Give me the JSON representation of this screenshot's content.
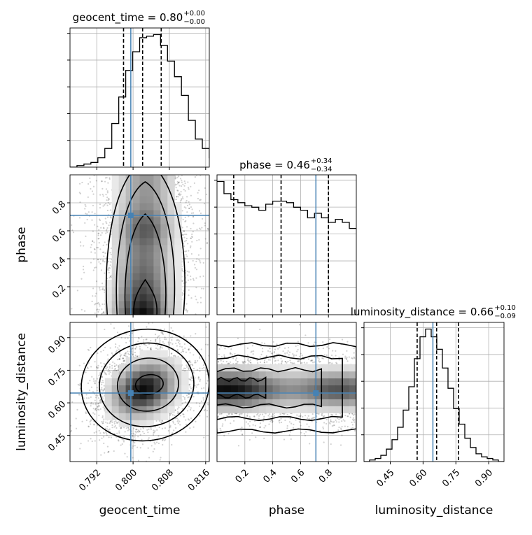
{
  "chart_data": {
    "type": "corner",
    "truth_color": "#4682b4",
    "parameters": [
      "geocent_time",
      "phase",
      "luminosity_distance"
    ],
    "truths": {
      "geocent_time": 0.7995,
      "phase": 0.71,
      "luminosity_distance": 0.645
    },
    "ranges": {
      "geocent_time": [
        0.7861,
        0.8168
      ],
      "phase": [
        0.0,
        1.0
      ],
      "luminosity_distance": [
        0.33,
        0.97
      ]
    },
    "ticks": {
      "geocent_time": [
        "0.792",
        "0.800",
        "0.808",
        "0.816"
      ],
      "phase": [
        "0.2",
        "0.4",
        "0.6",
        "0.8"
      ],
      "luminosity_distance": [
        "0.45",
        "0.60",
        "0.75",
        "0.90"
      ]
    },
    "titles": [
      {
        "param": "geocent_time",
        "main": "geocent_time = 0.80",
        "sup": "+0.00",
        "sub": "−0.00",
        "q16": 0.7979,
        "median": 0.8021,
        "q84": 0.8062
      },
      {
        "param": "phase",
        "main": "phase = 0.46",
        "sup": "+0.34",
        "sub": "−0.34",
        "q16": 0.12,
        "median": 0.46,
        "q84": 0.8
      },
      {
        "param": "luminosity_distance",
        "main": "luminosity_distance = 0.66",
        "sup": "+0.10",
        "sub": "−0.09",
        "q16": 0.573,
        "median": 0.662,
        "q84": 0.762
      }
    ],
    "histograms": {
      "geocent_time": {
        "bin_edges_start": 0.7861,
        "bin_width": 0.001535,
        "counts": [
          0,
          1,
          2,
          3,
          6,
          12,
          28,
          45,
          62,
          74,
          83,
          84,
          85,
          78,
          68,
          58,
          46,
          30,
          18,
          12,
          6,
          3,
          2,
          1,
          0
        ]
      },
      "phase": {
        "bin_edges_start": 0.0,
        "bin_width": 0.05,
        "counts": [
          88,
          80,
          76,
          74,
          72,
          71,
          69,
          73,
          75,
          75,
          74,
          71,
          69,
          64,
          67,
          64,
          61,
          63,
          61,
          57
        ]
      },
      "luminosity_distance": {
        "bin_edges_start": 0.33,
        "bin_width": 0.0256,
        "counts": [
          0,
          1,
          2,
          4,
          8,
          14,
          22,
          33,
          48,
          66,
          80,
          85,
          80,
          72,
          60,
          47,
          34,
          24,
          15,
          9,
          5,
          3,
          2,
          1,
          0
        ]
      }
    },
    "density_panels": [
      {
        "x": "geocent_time",
        "y": "phase",
        "x_range": [
          0.7861,
          0.8168
        ],
        "y_range": [
          0.0,
          1.0
        ],
        "peak": {
          "x": 0.803,
          "y": 0.05
        },
        "contour_levels": 4
      },
      {
        "x": "geocent_time",
        "y": "luminosity_distance",
        "x_range": [
          0.7861,
          0.8168
        ],
        "y_range": [
          0.33,
          0.97
        ],
        "peak": {
          "x": 0.8045,
          "y": 0.66
        },
        "contour_levels": 4
      },
      {
        "x": "phase",
        "y": "luminosity_distance",
        "x_range": [
          0.0,
          1.0
        ],
        "y_range": [
          0.33,
          0.97
        ],
        "peak": {
          "x": 0.0,
          "y": 0.66
        },
        "contour_levels": 4
      }
    ]
  }
}
